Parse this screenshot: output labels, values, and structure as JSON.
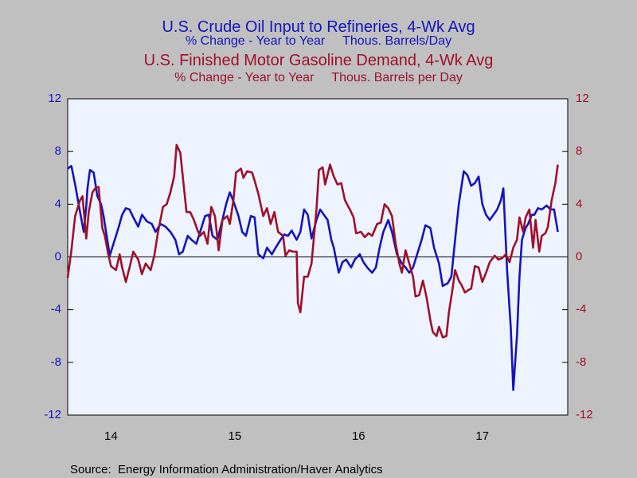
{
  "chart_data": {
    "type": "line",
    "titles": [
      {
        "title": "U.S. Crude Oil Input to Refineries, 4-Wk Avg",
        "subtitle": "% Change - Year to Year     Thous. Barrels/Day",
        "color": "#1414c0"
      },
      {
        "title": "U.S. Finished Motor Gasoline Demand, 4-Wk Avg",
        "subtitle": "% Change - Year to Year     Thous. Barrels per Day",
        "color": "#a01028"
      }
    ],
    "source": "Source:  Energy Information Administration/Haver Analytics",
    "xlim": [
      2014.15,
      2018.19
    ],
    "xticks": [
      {
        "value": 2014.5,
        "label": "14"
      },
      {
        "value": 2015.5,
        "label": "15"
      },
      {
        "value": 2016.5,
        "label": "16"
      },
      {
        "value": 2017.5,
        "label": "17"
      }
    ],
    "ylim": [
      -12,
      12
    ],
    "yticks": [
      -12,
      -8,
      -4,
      0,
      4,
      8,
      12
    ],
    "y2lim": [
      -12,
      12
    ],
    "y2ticks": [
      -12,
      -8,
      -4,
      0,
      4,
      8,
      12
    ],
    "zero_line": true,
    "series": [
      {
        "color": "#1414c0",
        "axis": "y",
        "x": [
          2014.15,
          2014.18,
          2014.21,
          2014.25,
          2014.28,
          2014.3,
          2014.31,
          2014.33,
          2014.36,
          2014.39,
          2014.42,
          2014.44,
          2014.47,
          2014.49,
          2014.52,
          2014.56,
          2014.59,
          2014.62,
          2014.65,
          2014.68,
          2014.72,
          2014.75,
          2014.79,
          2014.83,
          2014.86,
          2014.9,
          2014.94,
          2014.98,
          2015.02,
          2015.05,
          2015.08,
          2015.12,
          2015.15,
          2015.19,
          2015.22,
          2015.26,
          2015.29,
          2015.32,
          2015.36,
          2015.4,
          2015.43,
          2015.46,
          2015.49,
          2015.53,
          2015.56,
          2015.59,
          2015.63,
          2015.66,
          2015.69,
          2015.73,
          2015.76,
          2015.8,
          2015.83,
          2015.87,
          2015.9,
          2015.93,
          2015.96,
          2016.0,
          2016.03,
          2016.06,
          2016.09,
          2016.12,
          2016.16,
          2016.19,
          2016.22,
          2016.25,
          2016.28,
          2016.3,
          2016.34,
          2016.37,
          2016.4,
          2016.44,
          2016.47,
          2016.51,
          2016.54,
          2016.57,
          2016.61,
          2016.64,
          2016.67,
          2016.7,
          2016.74,
          2016.77,
          2016.81,
          2016.85,
          2016.88,
          2016.91,
          2016.94,
          2016.97,
          2017.01,
          2017.04,
          2017.08,
          2017.11,
          2017.15,
          2017.18,
          2017.22,
          2017.25,
          2017.28,
          2017.31,
          2017.35,
          2017.38,
          2017.41,
          2017.44,
          2017.47,
          2017.5,
          2017.53,
          2017.56,
          2017.59,
          2017.62,
          2017.65,
          2017.67,
          2017.7,
          2017.73,
          2017.75,
          2017.78,
          2017.8,
          2017.82,
          2017.85,
          2017.87,
          2017.9,
          2017.92,
          2017.95,
          2017.98,
          2018.02,
          2018.05,
          2018.08,
          2018.11
        ],
        "values": [
          6.7,
          6.9,
          5.5,
          3.4,
          1.9,
          3.8,
          5.2,
          6.6,
          6.4,
          4.6,
          4.0,
          3.1,
          1.3,
          0.1,
          1.0,
          2.2,
          3.2,
          3.7,
          3.6,
          3.0,
          2.3,
          3.2,
          2.7,
          2.5,
          1.9,
          2.5,
          2.3,
          1.9,
          1.3,
          0.2,
          0.4,
          1.6,
          1.3,
          1.0,
          1.9,
          3.1,
          3.2,
          1.6,
          1.3,
          2.8,
          4.0,
          4.9,
          4.2,
          3.1,
          1.9,
          1.6,
          3.1,
          3.0,
          0.2,
          -0.1,
          0.7,
          0.2,
          0.7,
          1.3,
          1.7,
          1.6,
          2.0,
          1.3,
          1.9,
          3.6,
          3.2,
          1.4,
          2.8,
          3.6,
          3.2,
          2.8,
          1.3,
          0.7,
          -1.2,
          -0.4,
          -0.2,
          -0.8,
          -0.2,
          0.2,
          -0.4,
          -0.8,
          -1.2,
          -0.8,
          0.7,
          1.9,
          2.8,
          1.9,
          0.2,
          -0.5,
          -0.8,
          -1.2,
          -0.8,
          0.1,
          1.3,
          2.4,
          2.2,
          0.7,
          -0.5,
          -2.2,
          -2.0,
          -1.5,
          1.3,
          4.0,
          6.5,
          6.2,
          5.4,
          5.6,
          6.1,
          4.0,
          3.2,
          2.8,
          3.2,
          3.6,
          4.3,
          5.2,
          -1.0,
          -5.4,
          -10.1,
          -6.0,
          -1.5,
          1.3,
          2.2,
          2.5,
          3.2,
          3.2,
          3.7,
          3.6,
          3.9,
          3.6,
          3.6,
          1.9
        ]
      },
      {
        "color": "#a01028",
        "axis": "y2",
        "x": [
          2014.15,
          2014.18,
          2014.21,
          2014.25,
          2014.27,
          2014.3,
          2014.32,
          2014.35,
          2014.38,
          2014.4,
          2014.43,
          2014.45,
          2014.48,
          2014.5,
          2014.54,
          2014.57,
          2014.59,
          2014.62,
          2014.65,
          2014.68,
          2014.72,
          2014.75,
          2014.78,
          2014.82,
          2014.85,
          2014.88,
          2014.92,
          2014.95,
          2014.98,
          2015.01,
          2015.03,
          2015.06,
          2015.08,
          2015.11,
          2015.14,
          2015.17,
          2015.2,
          2015.22,
          2015.25,
          2015.28,
          2015.31,
          2015.34,
          2015.37,
          2015.4,
          2015.44,
          2015.46,
          2015.49,
          2015.51,
          2015.55,
          2015.57,
          2015.6,
          2015.64,
          2015.66,
          2015.69,
          2015.73,
          2015.76,
          2015.79,
          2015.82,
          2015.85,
          2015.89,
          2015.91,
          2015.94,
          2015.97,
          2016.0,
          2016.01,
          2016.03,
          2016.06,
          2016.09,
          2016.12,
          2016.16,
          2016.18,
          2016.21,
          2016.23,
          2016.27,
          2016.3,
          2016.33,
          2016.36,
          2016.39,
          2016.43,
          2016.46,
          2016.48,
          2016.52,
          2016.55,
          2016.58,
          2016.61,
          2016.65,
          2016.68,
          2016.71,
          2016.74,
          2016.77,
          2016.8,
          2016.83,
          2016.85,
          2016.88,
          2016.91,
          2016.94,
          2016.96,
          2016.99,
          2017.02,
          2017.05,
          2017.08,
          2017.1,
          2017.13,
          2017.15,
          2017.18,
          2017.21,
          2017.23,
          2017.26,
          2017.28,
          2017.31,
          2017.33,
          2017.36,
          2017.39,
          2017.41,
          2017.44,
          2017.47,
          2017.5,
          2017.53,
          2017.56,
          2017.6,
          2017.63,
          2017.66,
          2017.69,
          2017.72,
          2017.75,
          2017.78,
          2017.8,
          2017.83,
          2017.85,
          2017.88,
          2017.91,
          2017.93,
          2017.96,
          2017.98,
          2018.01,
          2018.03,
          2018.06,
          2018.09,
          2018.11
        ],
        "values": [
          -1.6,
          0.5,
          3.1,
          4.3,
          4.6,
          1.4,
          3.4,
          4.9,
          5.3,
          5.3,
          2.2,
          1.6,
          0.1,
          -0.7,
          -1.0,
          0.2,
          -0.8,
          -1.9,
          -0.8,
          0.4,
          -0.2,
          -1.3,
          -0.5,
          -1.0,
          0.1,
          1.9,
          3.8,
          4.0,
          4.9,
          6.1,
          8.5,
          7.9,
          6.1,
          3.4,
          3.4,
          2.8,
          2.0,
          1.6,
          1.9,
          1.0,
          3.8,
          3.1,
          0.5,
          2.8,
          3.1,
          2.5,
          4.4,
          6.4,
          6.7,
          6.0,
          6.5,
          6.4,
          5.8,
          4.8,
          3.1,
          3.7,
          2.5,
          3.4,
          1.9,
          1.6,
          0.1,
          0.5,
          0.4,
          0.4,
          -3.5,
          -4.2,
          -1.5,
          -1.5,
          -0.5,
          3.6,
          6.6,
          6.8,
          5.5,
          7.0,
          6.1,
          5.5,
          5.6,
          4.3,
          3.6,
          3.0,
          1.8,
          1.9,
          1.5,
          1.8,
          1.6,
          2.5,
          2.6,
          4.0,
          3.7,
          3.1,
          1.0,
          -0.5,
          -1.2,
          0.5,
          -0.5,
          -1.5,
          -3.0,
          -2.9,
          -1.8,
          -3.1,
          -4.8,
          -5.7,
          -6.0,
          -5.3,
          -6.1,
          -6.0,
          -4.2,
          -2.4,
          -1.0,
          -1.8,
          -2.1,
          -2.7,
          -2.5,
          -2.4,
          -0.7,
          -0.8,
          -1.9,
          -1.2,
          -0.4,
          0.1,
          -0.2,
          -0.1,
          0.2,
          -0.4,
          0.7,
          1.3,
          3.0,
          1.9,
          3.0,
          3.6,
          0.7,
          2.8,
          0.4,
          1.6,
          1.8,
          2.3,
          4.3,
          5.6,
          7.0
        ]
      }
    ]
  }
}
